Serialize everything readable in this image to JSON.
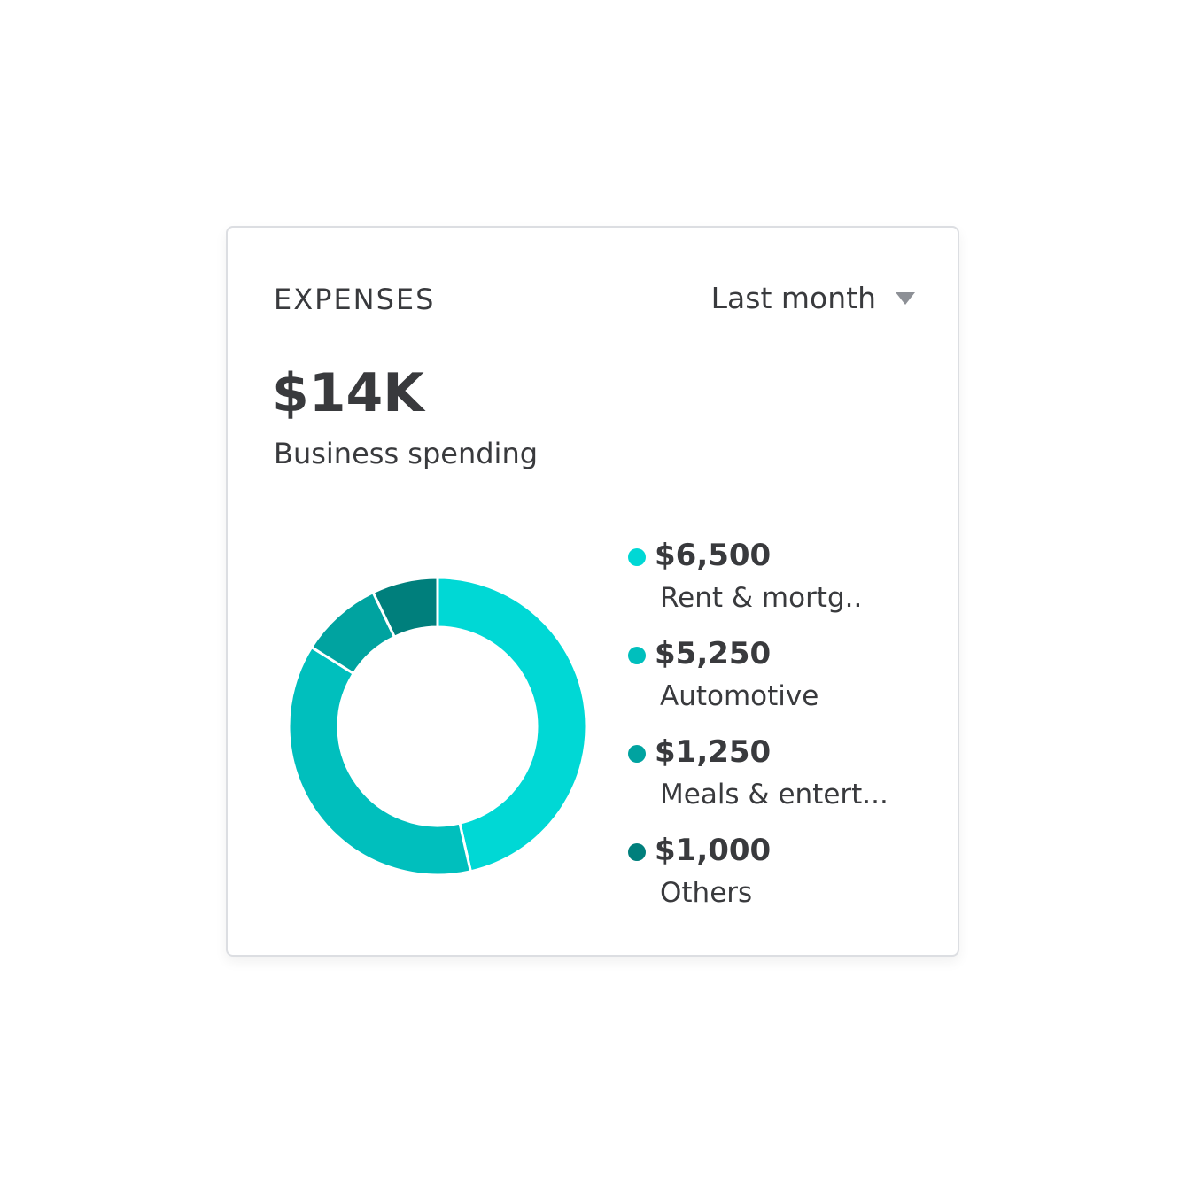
{
  "header": {
    "title": "EXPENSES",
    "period": "Last month",
    "period_icon": "caret-down-icon"
  },
  "summary": {
    "total": "$14K",
    "subtitle": "Business spending"
  },
  "chart_data": {
    "type": "pie",
    "donut": true,
    "start": "top",
    "direction": "clockwise",
    "categories": [
      "Rent & mortg..",
      "Automotive",
      "Meals & entert...",
      "Others"
    ],
    "values": [
      6500,
      5250,
      1250,
      1000
    ],
    "value_labels": [
      "$6,500",
      "$5,250",
      "$1,250",
      "$1,000"
    ],
    "colors": [
      "#00d8d5",
      "#00bfbd",
      "#00a3a0",
      "#007f7c"
    ],
    "legend": "right"
  }
}
